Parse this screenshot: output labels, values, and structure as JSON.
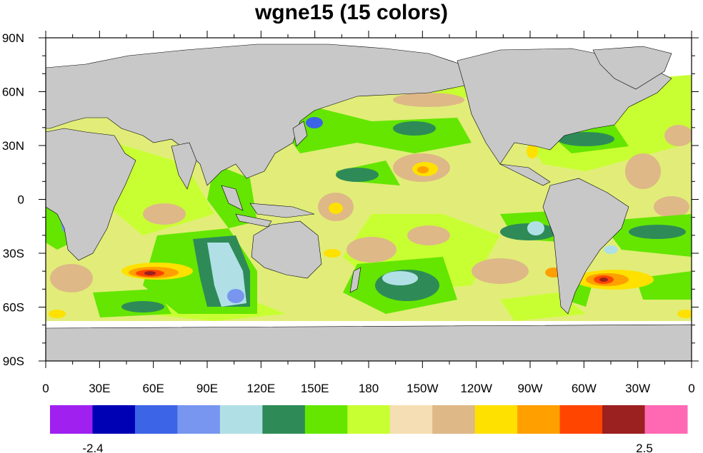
{
  "title": "wgne15 (15 colors)",
  "x_tick_labels": [
    "0",
    "30E",
    "60E",
    "90E",
    "120E",
    "150E",
    "180",
    "150W",
    "120W",
    "90W",
    "60W",
    "30W",
    "0"
  ],
  "y_tick_labels": [
    "90N",
    "60N",
    "30N",
    "0",
    "30S",
    "60S",
    "90S"
  ],
  "colorbar": {
    "colors": [
      "#a020f0",
      "#0000b4",
      "#3c64e6",
      "#7896f0",
      "#b0e0e6",
      "#2e8b57",
      "#64e600",
      "#c8ff32",
      "#f5deb3",
      "#deb887",
      "#ffe100",
      "#ffa000",
      "#ff4500",
      "#9b2020",
      "#ff69b4"
    ],
    "min_label": "-2.4",
    "max_label": "2.5"
  },
  "palette": {
    "land": "#c8c8c8",
    "missing": "#ffffff",
    "coast": "#000000"
  }
}
